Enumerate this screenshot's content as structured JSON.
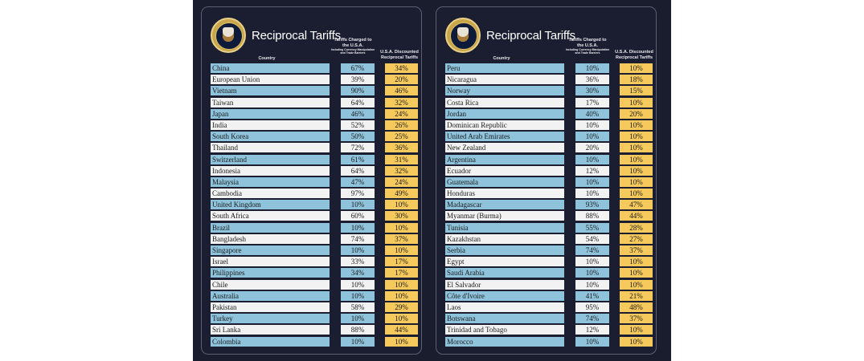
{
  "left_panel": {
    "title": "Reciprocal Tariffs",
    "headers": {
      "country": "Country",
      "charged": "Tariffs Charged to the U.S.A.",
      "charged_sub": "Including Currency Manipulation and Trade Barriers",
      "discounted": "U.S.A. Discounted Reciprocal Tariffs"
    },
    "rows": [
      {
        "country": "China",
        "charged": "67%",
        "discounted": "34%"
      },
      {
        "country": "European Union",
        "charged": "39%",
        "discounted": "20%"
      },
      {
        "country": "Vietnam",
        "charged": "90%",
        "discounted": "46%"
      },
      {
        "country": "Taiwan",
        "charged": "64%",
        "discounted": "32%"
      },
      {
        "country": "Japan",
        "charged": "46%",
        "discounted": "24%"
      },
      {
        "country": "India",
        "charged": "52%",
        "discounted": "26%"
      },
      {
        "country": "South Korea",
        "charged": "50%",
        "discounted": "25%"
      },
      {
        "country": "Thailand",
        "charged": "72%",
        "discounted": "36%"
      },
      {
        "country": "Switzerland",
        "charged": "61%",
        "discounted": "31%"
      },
      {
        "country": "Indonesia",
        "charged": "64%",
        "discounted": "32%"
      },
      {
        "country": "Malaysia",
        "charged": "47%",
        "discounted": "24%"
      },
      {
        "country": "Cambodia",
        "charged": "97%",
        "discounted": "49%"
      },
      {
        "country": "United Kingdom",
        "charged": "10%",
        "discounted": "10%"
      },
      {
        "country": "South Africa",
        "charged": "60%",
        "discounted": "30%"
      },
      {
        "country": "Brazil",
        "charged": "10%",
        "discounted": "10%"
      },
      {
        "country": "Bangladesh",
        "charged": "74%",
        "discounted": "37%"
      },
      {
        "country": "Singapore",
        "charged": "10%",
        "discounted": "10%"
      },
      {
        "country": "Israel",
        "charged": "33%",
        "discounted": "17%"
      },
      {
        "country": "Philippines",
        "charged": "34%",
        "discounted": "17%"
      },
      {
        "country": "Chile",
        "charged": "10%",
        "discounted": "10%"
      },
      {
        "country": "Australia",
        "charged": "10%",
        "discounted": "10%"
      },
      {
        "country": "Pakistan",
        "charged": "58%",
        "discounted": "29%"
      },
      {
        "country": "Turkey",
        "charged": "10%",
        "discounted": "10%"
      },
      {
        "country": "Sri Lanka",
        "charged": "88%",
        "discounted": "44%"
      },
      {
        "country": "Colombia",
        "charged": "10%",
        "discounted": "10%"
      }
    ]
  },
  "right_panel": {
    "title": "Reciprocal Tariffs",
    "headers": {
      "country": "Country",
      "charged": "Tariffs Charged to the U.S.A.",
      "charged_sub": "Including Currency Manipulation and Trade Barriers",
      "discounted": "U.S.A. Discounted Reciprocal Tariffs"
    },
    "rows": [
      {
        "country": "Peru",
        "charged": "10%",
        "discounted": "10%"
      },
      {
        "country": "Nicaragua",
        "charged": "36%",
        "discounted": "18%"
      },
      {
        "country": "Norway",
        "charged": "30%",
        "discounted": "15%"
      },
      {
        "country": "Costa Rica",
        "charged": "17%",
        "discounted": "10%"
      },
      {
        "country": "Jordan",
        "charged": "40%",
        "discounted": "20%"
      },
      {
        "country": "Dominican Republic",
        "charged": "10%",
        "discounted": "10%"
      },
      {
        "country": "United Arab Emirates",
        "charged": "10%",
        "discounted": "10%"
      },
      {
        "country": "New Zealand",
        "charged": "20%",
        "discounted": "10%"
      },
      {
        "country": "Argentina",
        "charged": "10%",
        "discounted": "10%"
      },
      {
        "country": "Ecuador",
        "charged": "12%",
        "discounted": "10%"
      },
      {
        "country": "Guatemala",
        "charged": "10%",
        "discounted": "10%"
      },
      {
        "country": "Honduras",
        "charged": "10%",
        "discounted": "10%"
      },
      {
        "country": "Madagascar",
        "charged": "93%",
        "discounted": "47%"
      },
      {
        "country": "Myanmar (Burma)",
        "charged": "88%",
        "discounted": "44%"
      },
      {
        "country": "Tunisia",
        "charged": "55%",
        "discounted": "28%"
      },
      {
        "country": "Kazakhstan",
        "charged": "54%",
        "discounted": "27%"
      },
      {
        "country": "Serbia",
        "charged": "74%",
        "discounted": "37%"
      },
      {
        "country": "Egypt",
        "charged": "10%",
        "discounted": "10%"
      },
      {
        "country": "Saudi Arabia",
        "charged": "10%",
        "discounted": "10%"
      },
      {
        "country": "El Salvador",
        "charged": "10%",
        "discounted": "10%"
      },
      {
        "country": "Côte d'Ivoire",
        "charged": "41%",
        "discounted": "21%"
      },
      {
        "country": "Laos",
        "charged": "95%",
        "discounted": "48%"
      },
      {
        "country": "Botswana",
        "charged": "74%",
        "discounted": "37%"
      },
      {
        "country": "Trinidad and Tobago",
        "charged": "12%",
        "discounted": "10%"
      },
      {
        "country": "Morocco",
        "charged": "10%",
        "discounted": "10%"
      }
    ]
  },
  "colors": {
    "background": "#1a1d2e",
    "row_blue": "#8fc3dc",
    "row_white": "#f2f2f2",
    "discount_yellow": "#f5c95c"
  },
  "icons": {
    "seal": "presidential-seal-icon"
  }
}
